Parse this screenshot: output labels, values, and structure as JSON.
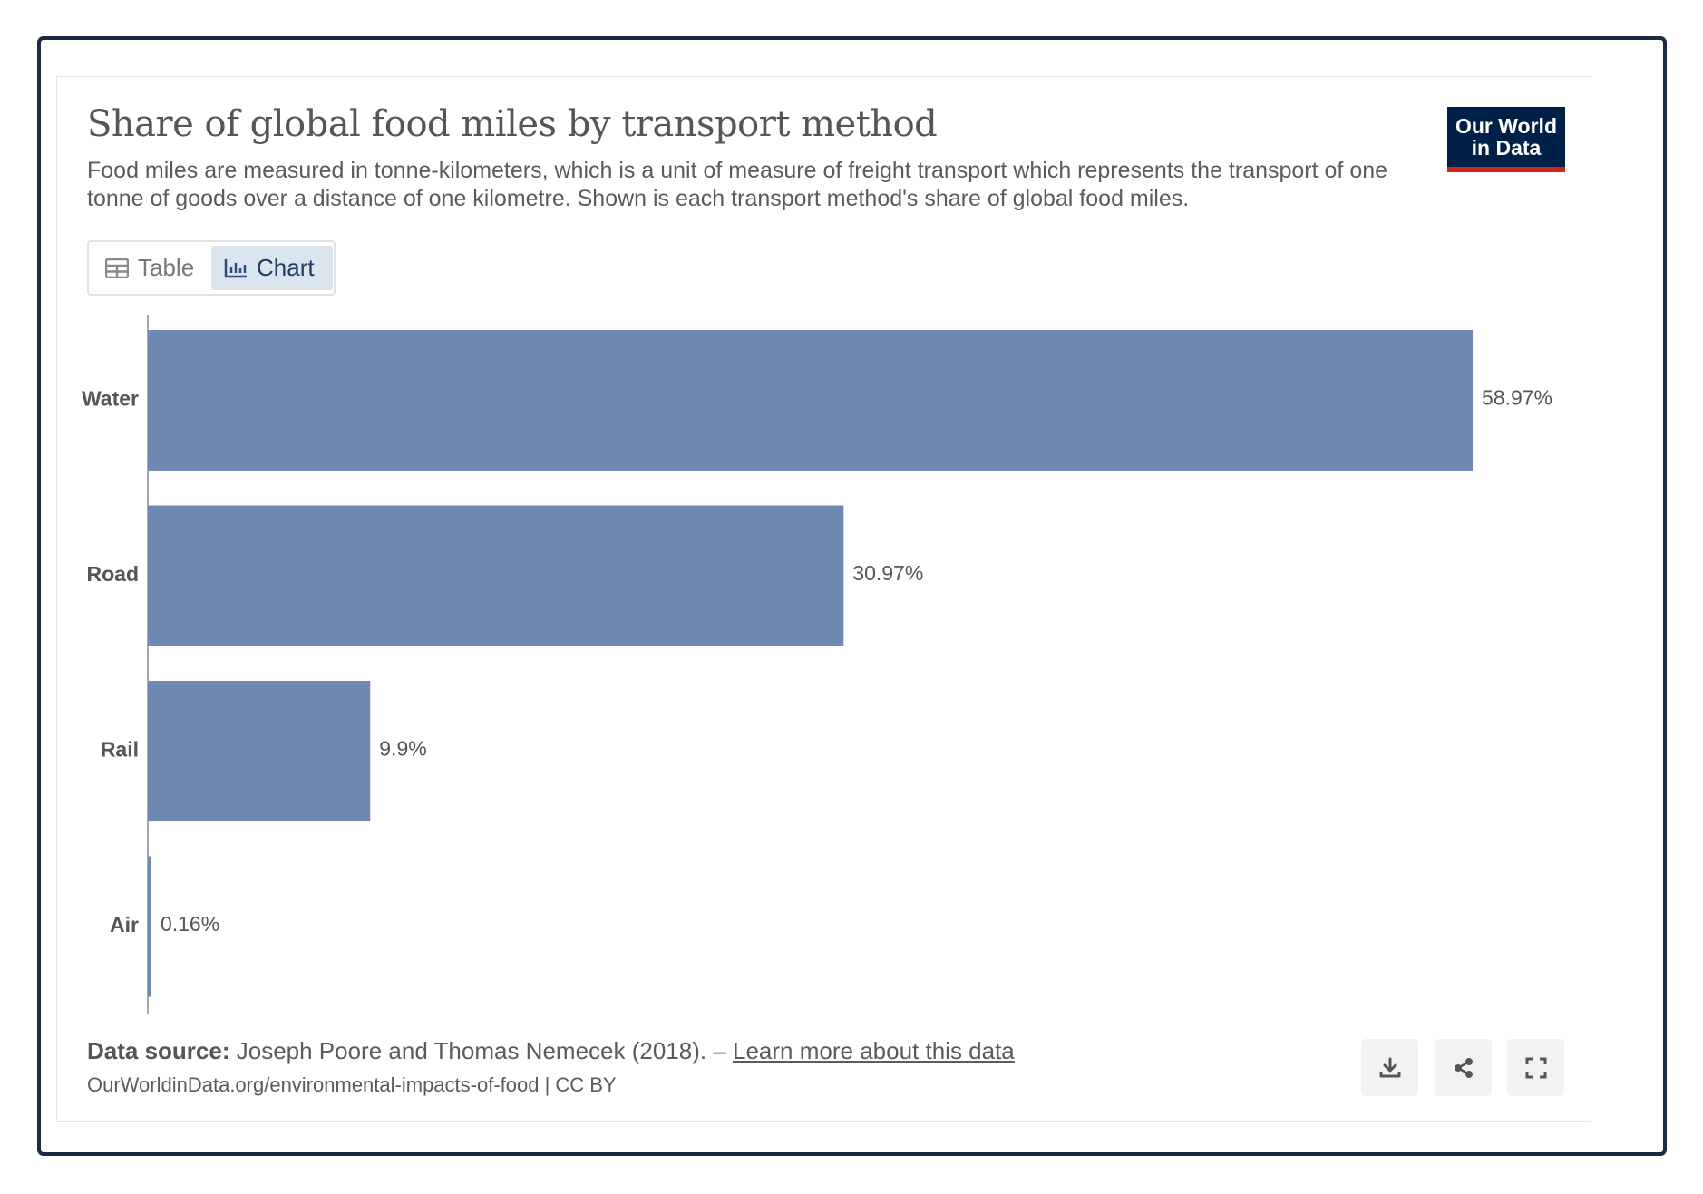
{
  "header": {
    "title": "Share of global food miles by transport method",
    "subtitle": "Food miles are measured in tonne-kilometers, which is a unit of measure of freight transport which represents the transport of one tonne of goods over a distance of one kilometre. Shown is each transport method's share of global food miles.",
    "logo_line1": "Our World",
    "logo_line2": "in Data",
    "logo_color": "#002147",
    "logo_accent": "#ce261e"
  },
  "tabs": {
    "table_label": "Table",
    "chart_label": "Chart",
    "active": "chart"
  },
  "chart_data": {
    "type": "bar",
    "orientation": "horizontal",
    "categories": [
      "Water",
      "Road",
      "Rail",
      "Air"
    ],
    "values": [
      58.97,
      30.97,
      9.9,
      0.16
    ],
    "value_labels": [
      "58.97%",
      "30.97%",
      "9.9%",
      "0.16%"
    ],
    "bar_color": "#6f88b0",
    "xlim": [
      0,
      58.97
    ],
    "grid": false,
    "legend": "none"
  },
  "footer": {
    "source_label": "Data source:",
    "source_text": "Joseph Poore and Thomas Nemecek (2018). –",
    "learn_more": "Learn more about this data",
    "url_line": "OurWorldinData.org/environmental-impacts-of-food | CC BY"
  },
  "actions": {
    "download_icon": "download-icon",
    "share_icon": "share-icon",
    "fullscreen_icon": "fullscreen-icon"
  }
}
